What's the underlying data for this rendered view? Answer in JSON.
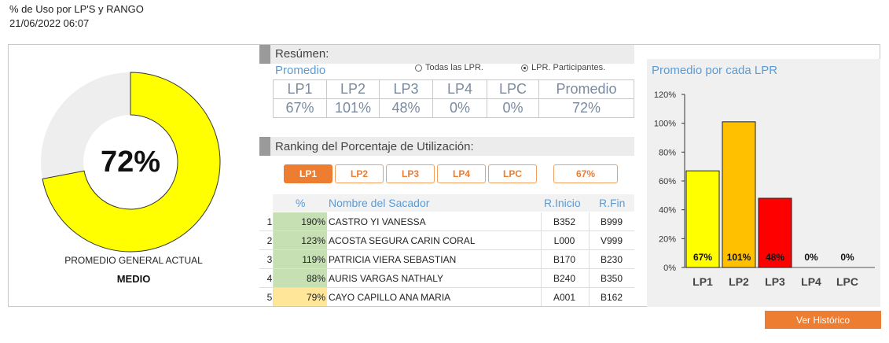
{
  "header": {
    "title": "% de Uso por LP'S y RANGO",
    "datetime": "21/06/2022 06:07"
  },
  "general": {
    "percent_label": "72%",
    "percent": 72,
    "label": "PROMEDIO GENERAL ACTUAL",
    "level": "MEDIO",
    "fill_color": "#ffff00",
    "track_color": "#eeeeee"
  },
  "resumen": {
    "title": "Resúmen:",
    "subtitle": "Promedio",
    "radio_all": "Todas las LPR.",
    "radio_participants": "LPR. Participantes.",
    "columns": [
      "LP1",
      "LP2",
      "LP3",
      "LP4",
      "LPC",
      "Promedio"
    ],
    "values": [
      "67%",
      "101%",
      "48%",
      "0%",
      "0%",
      "72%"
    ]
  },
  "ranking": {
    "title": "Ranking del Porcentaje de Utilización:",
    "tabs": [
      "LP1",
      "LP2",
      "LP3",
      "LP4",
      "LPC"
    ],
    "active_tab": "LP1",
    "tab_value": "67%",
    "columns": {
      "pct": "%",
      "name": "Nombre del Sacador",
      "inicio": "R.Inicio",
      "fin": "R.Fin"
    },
    "rows": [
      {
        "n": "1",
        "pct": "190%",
        "name": "CASTRO YI VANESSA",
        "inicio": "B352",
        "fin": "B999",
        "color": "#c6e0b4"
      },
      {
        "n": "2",
        "pct": "123%",
        "name": "ACOSTA SEGURA CARIN CORAL",
        "inicio": "L000",
        "fin": "V999",
        "color": "#c6e0b4"
      },
      {
        "n": "3",
        "pct": "119%",
        "name": "PATRICIA VIERA SEBASTIAN",
        "inicio": "B170",
        "fin": "B230",
        "color": "#c6e0b4"
      },
      {
        "n": "4",
        "pct": "88%",
        "name": "AURIS VARGAS NATHALY",
        "inicio": "B240",
        "fin": "B350",
        "color": "#c6e0b4"
      },
      {
        "n": "5",
        "pct": "79%",
        "name": "CAYO CAPILLO ANA MARIA",
        "inicio": "A001",
        "fin": "B162",
        "color": "#ffe699"
      }
    ]
  },
  "chart_data": {
    "type": "bar",
    "title": "Promedio por cada LPR",
    "categories": [
      "LP1",
      "LP2",
      "LP3",
      "LP4",
      "LPC"
    ],
    "values": [
      67,
      101,
      48,
      0,
      0
    ],
    "value_labels": [
      "67%",
      "101%",
      "48%",
      "0%",
      "0%"
    ],
    "colors": [
      "#ffff00",
      "#ffc000",
      "#ff0000",
      "#ffff00",
      "#ffff00"
    ],
    "ylim": [
      0,
      120
    ],
    "yticks": [
      0,
      20,
      40,
      60,
      80,
      100,
      120
    ],
    "ytick_labels": [
      "0%",
      "20%",
      "40%",
      "60%",
      "80%",
      "100%",
      "120%"
    ],
    "grid": false,
    "legend": "none"
  },
  "actions": {
    "history": "Ver Histórico"
  }
}
